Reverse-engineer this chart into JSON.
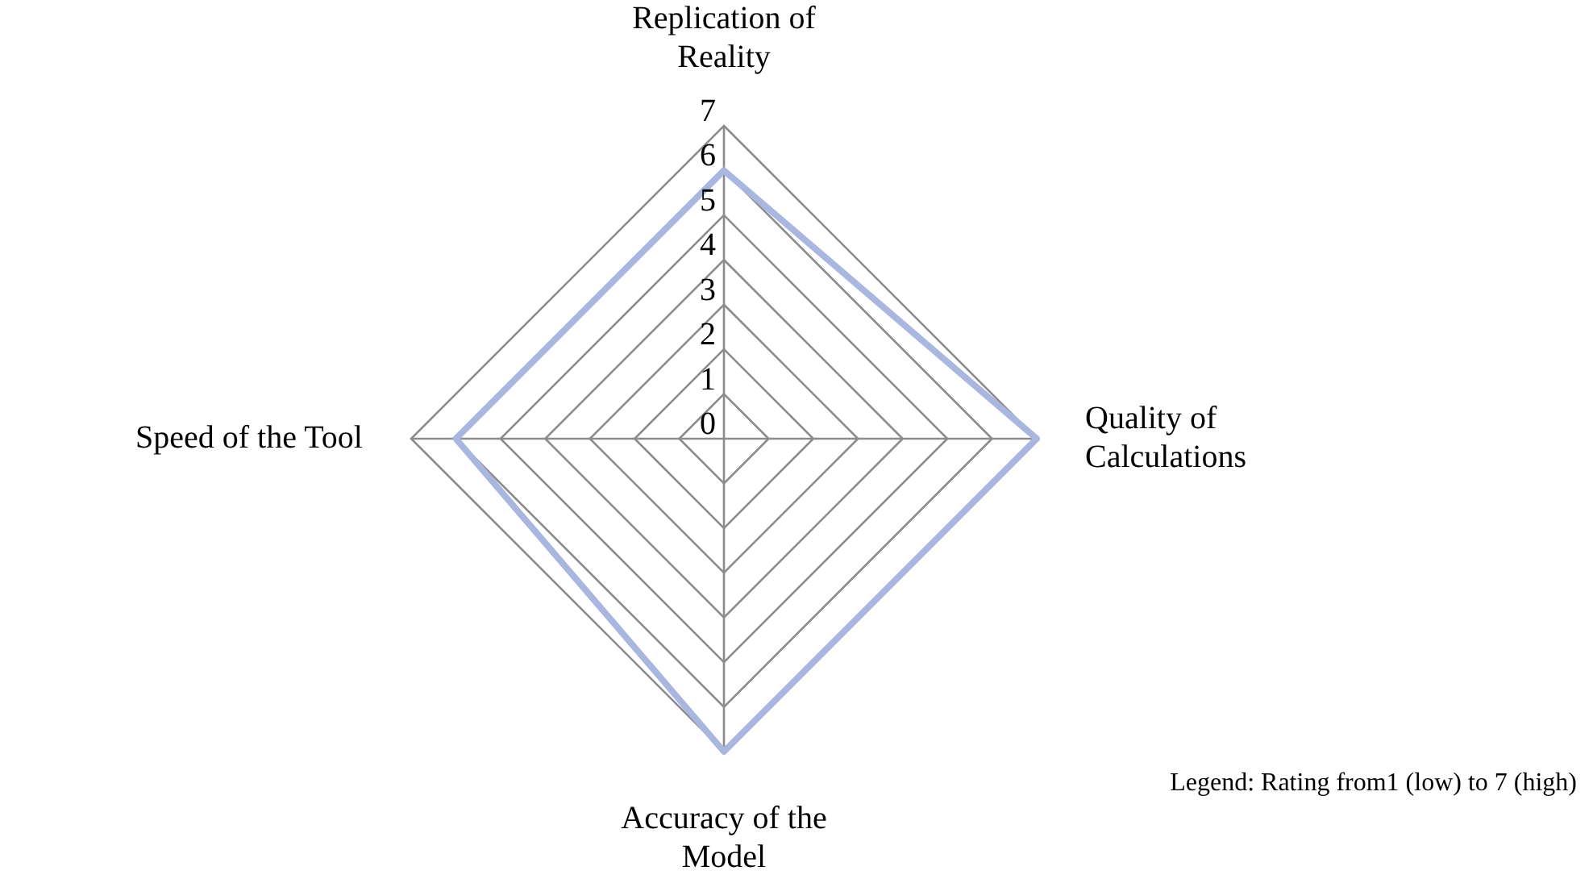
{
  "chart_data": {
    "type": "radar",
    "categories": [
      "Replication of Reality",
      "Quality of Calculations",
      "Accuracy of the Model",
      "Speed of the Tool"
    ],
    "series": [
      {
        "color": "#a9b6e0",
        "values": [
          6,
          7,
          7,
          6
        ]
      }
    ],
    "ylim": [
      0,
      7
    ],
    "yticks": [
      0,
      1,
      2,
      3,
      4,
      5,
      6,
      7
    ],
    "grid": true,
    "legend": false,
    "marker": "none",
    "annotations": [
      "Legend: Rating from1 (low) to 7 (high)"
    ]
  }
}
